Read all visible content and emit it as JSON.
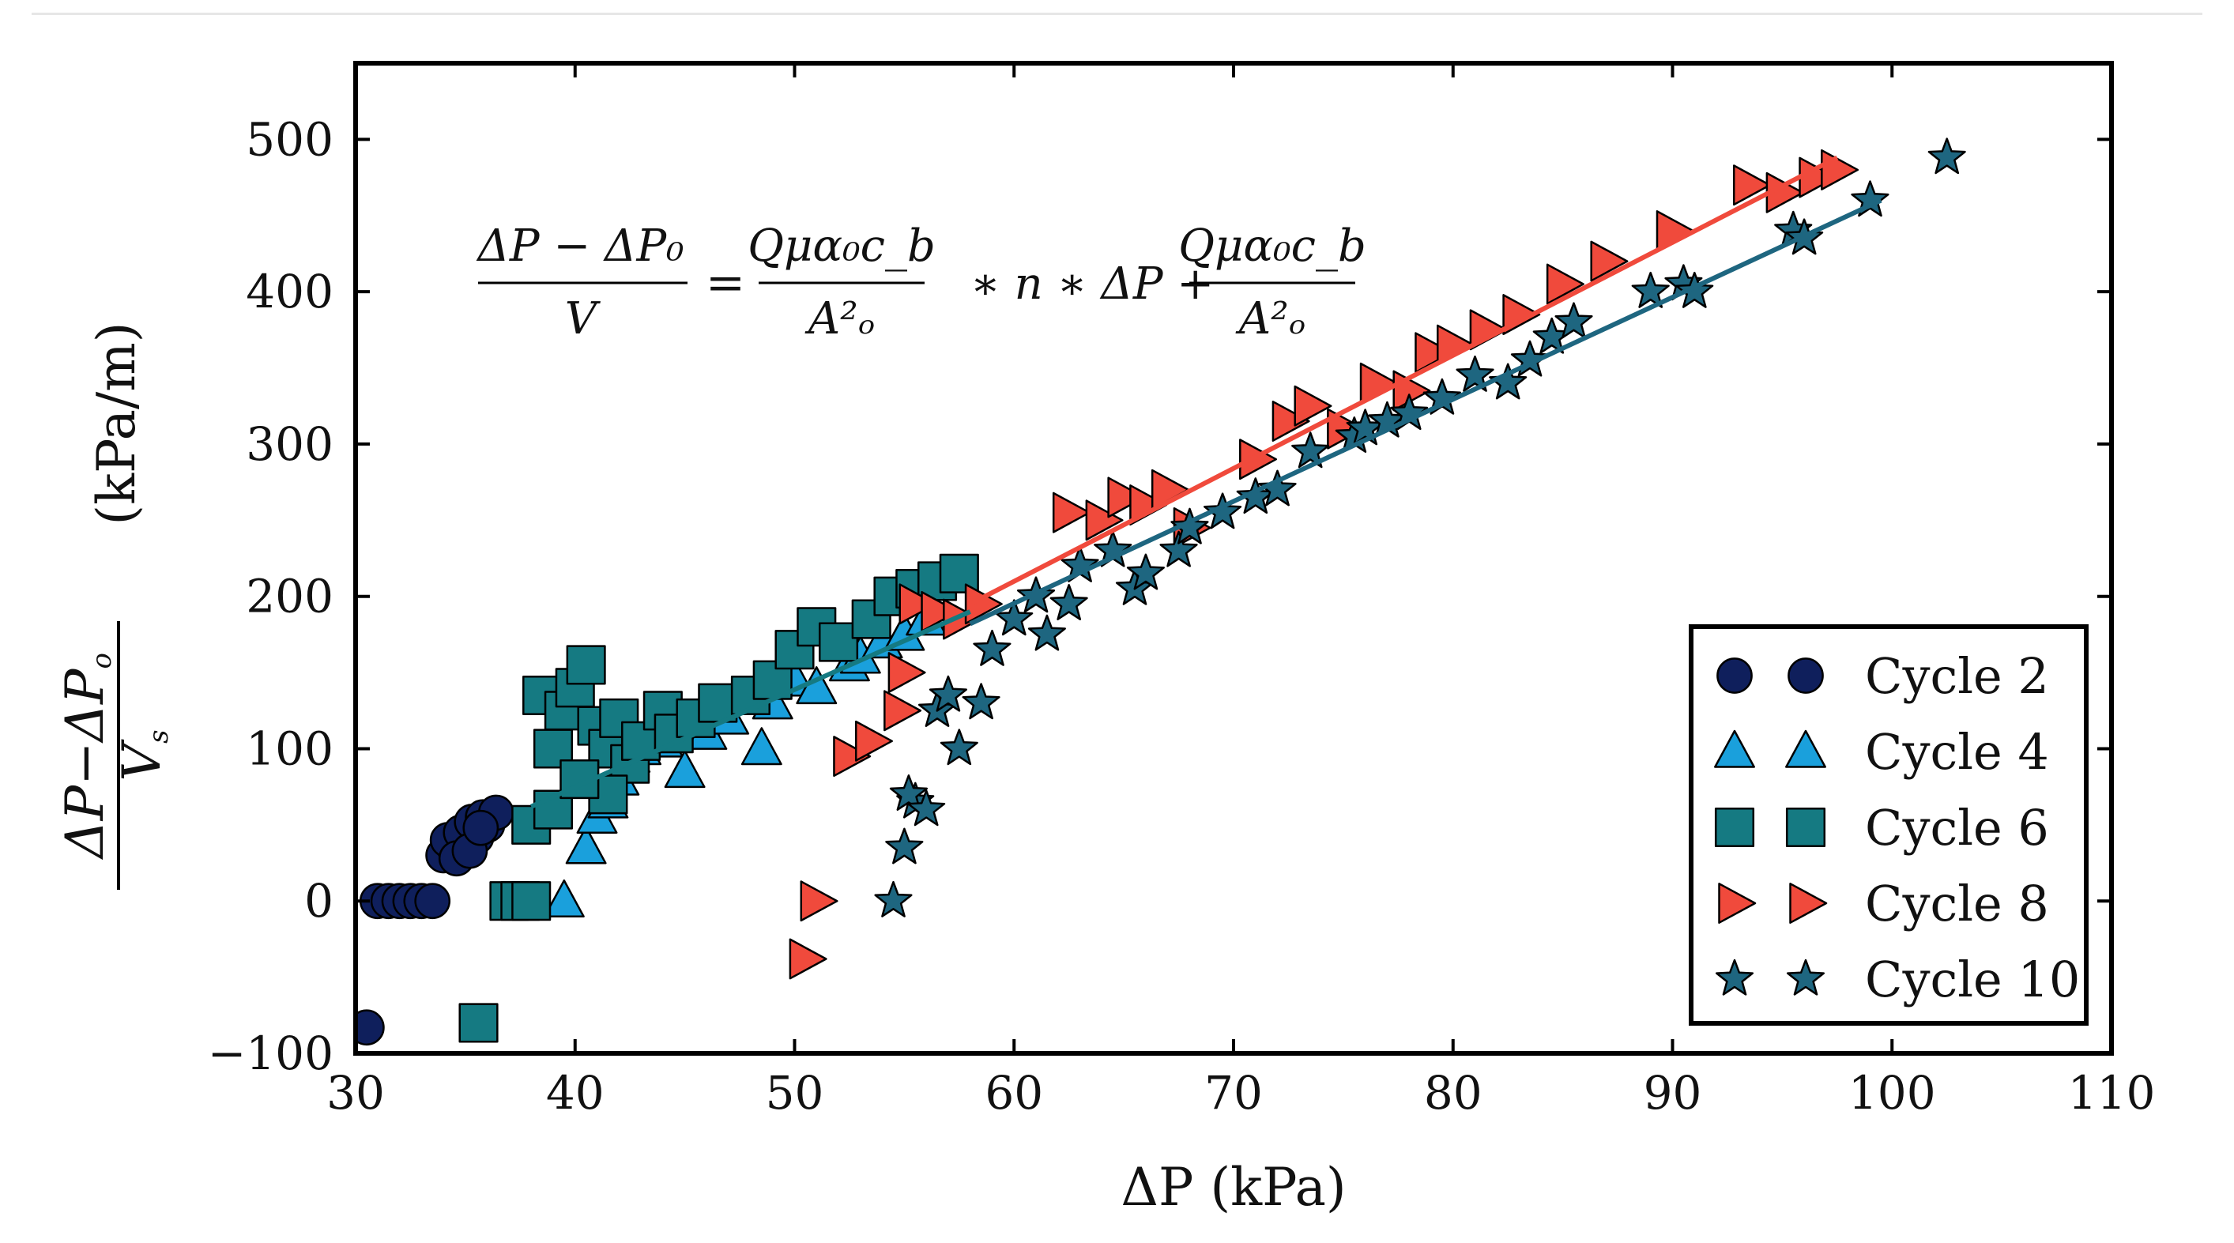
{
  "chart_data": {
    "type": "scatter",
    "title": "",
    "xlabel": "ΔP (kPa)",
    "ylabel": "(ΔP−ΔP_o)/V_s (kPa/m)",
    "ylabel_parts": {
      "num_a": "ΔP",
      "num_op": "−",
      "num_b": "ΔP",
      "num_sub": "o",
      "den": "V",
      "den_sub": "s",
      "units": "(kPa/m)"
    },
    "xlim": [
      30,
      110
    ],
    "ylim": [
      -100,
      550
    ],
    "xticks": [
      "30",
      "40",
      "50",
      "60",
      "70",
      "80",
      "90",
      "100",
      "110"
    ],
    "yticks": [
      "−100",
      "0",
      "100",
      "200",
      "300",
      "400",
      "500"
    ],
    "legend_position": "lower-right",
    "grid": false,
    "equation": {
      "lhs_num": "ΔP − ΔP₀",
      "lhs_den": "V",
      "eq": "=",
      "rhs1_num": "Qμα₀c_b",
      "rhs1_den": "A²ₒ",
      "mid": "∗ n ∗ ΔP +",
      "rhs2_num": "Qμα₀c_b",
      "rhs2_den": "A²ₒ"
    },
    "series": [
      {
        "name": "Cycle 2",
        "marker": "circle",
        "color": "#0f1f5c",
        "x": [
          30.5,
          31.0,
          31.5,
          32.0,
          32.5,
          33.0,
          33.5,
          34.0,
          34.5,
          35.0,
          35.5,
          36.0,
          34.2,
          34.8,
          35.3,
          35.8,
          36.4,
          34.6,
          35.2,
          35.7
        ],
        "y": [
          -83,
          0,
          0,
          0,
          0,
          0,
          0,
          30,
          35,
          40,
          42,
          50,
          40,
          45,
          52,
          55,
          58,
          28,
          33,
          48
        ]
      },
      {
        "name": "Cycle 4",
        "marker": "triangle",
        "color": "#1aa0dc",
        "x": [
          39.5,
          40.5,
          41.0,
          41.5,
          42.0,
          42.5,
          43.0,
          44.0,
          45.0,
          46.0,
          47.0,
          48.5,
          49.0,
          50.0,
          51.0,
          52.5,
          53.0,
          54.0,
          55.0,
          56.0
        ],
        "y": [
          0,
          35,
          55,
          65,
          80,
          95,
          100,
          105,
          85,
          110,
          120,
          100,
          130,
          145,
          140,
          155,
          160,
          170,
          175,
          185
        ]
      },
      {
        "name": "Cycle 6",
        "marker": "square",
        "color": "#157a82",
        "x": [
          35.6,
          37.0,
          37.5,
          38.0,
          38.5,
          39.0,
          39.5,
          40.0,
          40.5,
          41.0,
          41.5,
          42.0,
          42.5,
          43.0,
          44.0,
          44.5,
          45.5,
          46.5,
          48.0,
          49.0,
          50.0,
          51.0,
          52.0,
          53.5,
          54.5,
          55.5,
          56.5,
          57.5,
          38.0,
          39.0,
          41.5,
          40.2
        ],
        "y": [
          -80,
          0,
          0,
          50,
          135,
          100,
          125,
          140,
          155,
          115,
          100,
          120,
          90,
          105,
          125,
          110,
          120,
          130,
          135,
          145,
          165,
          180,
          170,
          185,
          200,
          205,
          210,
          215,
          0,
          60,
          70,
          80
        ]
      },
      {
        "name": "Cycle 8",
        "marker": "right-triangle",
        "color": "#f04a3c",
        "x": [
          50.5,
          51.0,
          52.5,
          53.5,
          54.8,
          55.0,
          55.5,
          56.5,
          57.5,
          58.5,
          62.5,
          64.0,
          65.0,
          66.0,
          67.0,
          68.0,
          71.0,
          72.5,
          73.5,
          75.0,
          76.5,
          78.0,
          79.0,
          80.0,
          81.5,
          83.0,
          85.0,
          87.0,
          90.0,
          93.5,
          95.0,
          96.5,
          97.5
        ],
        "y": [
          -38,
          0,
          95,
          105,
          125,
          150,
          195,
          190,
          185,
          195,
          255,
          250,
          265,
          260,
          270,
          245,
          290,
          315,
          325,
          310,
          340,
          335,
          360,
          365,
          375,
          385,
          405,
          420,
          440,
          470,
          465,
          475,
          480
        ]
      },
      {
        "name": "Cycle 10",
        "marker": "star",
        "color": "#1e6680",
        "x": [
          54.5,
          55.0,
          55.5,
          55.2,
          56.0,
          56.5,
          57.0,
          57.5,
          58.5,
          59.0,
          60.0,
          61.0,
          61.5,
          62.5,
          63.0,
          64.5,
          65.5,
          66.0,
          67.5,
          68.0,
          69.5,
          71.0,
          72.0,
          73.5,
          75.5,
          76.0,
          77.0,
          78.0,
          79.5,
          81.0,
          82.5,
          83.5,
          84.5,
          85.5,
          89.0,
          90.5,
          91.0,
          95.5,
          96.0,
          99.0,
          102.5
        ],
        "y": [
          0,
          35,
          65,
          70,
          60,
          125,
          135,
          100,
          130,
          165,
          185,
          200,
          175,
          195,
          220,
          230,
          205,
          215,
          230,
          245,
          255,
          265,
          270,
          295,
          305,
          310,
          315,
          320,
          330,
          345,
          340,
          355,
          370,
          380,
          400,
          405,
          400,
          440,
          435,
          460,
          488
        ]
      }
    ],
    "fit_lines": [
      {
        "color": "#f04a3c",
        "x": [
          58,
          97.5
        ],
        "y": [
          195,
          488
        ]
      },
      {
        "color": "#1e6680",
        "x": [
          58,
          99.5
        ],
        "y": [
          182,
          460
        ]
      },
      {
        "color": "#157a82",
        "x": [
          38,
          58
        ],
        "y": [
          62,
          190
        ]
      }
    ]
  }
}
